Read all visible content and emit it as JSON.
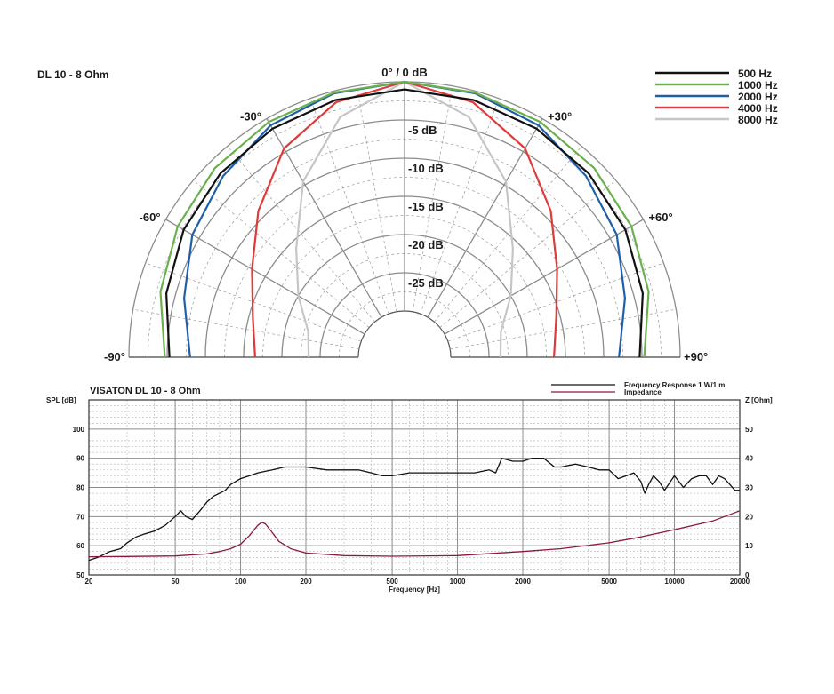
{
  "chart_data": [
    {
      "type": "polar",
      "title": "DL 10 - 8 Ohm",
      "radial_unit": "dB",
      "radial_ticks": [
        {
          "value": 0,
          "label": "0° / 0 dB"
        },
        {
          "value": -5,
          "label": "-5 dB"
        },
        {
          "value": -10,
          "label": "-10 dB"
        },
        {
          "value": -15,
          "label": "-15 dB"
        },
        {
          "value": -20,
          "label": "-20 dB"
        },
        {
          "value": -25,
          "label": "-25 dB"
        }
      ],
      "radial_range": [
        -30,
        0
      ],
      "angle_range": [
        -90,
        90
      ],
      "angle_labels": [
        {
          "angle": -90,
          "label": "-90°"
        },
        {
          "angle": -60,
          "label": "-60°"
        },
        {
          "angle": -30,
          "label": "-30°"
        },
        {
          "angle": 30,
          "label": "+30°"
        },
        {
          "angle": 60,
          "label": "+60°"
        },
        {
          "angle": 90,
          "label": "+90°"
        }
      ],
      "angles": [
        0,
        15,
        30,
        45,
        60,
        75,
        90
      ],
      "legend_position": "top-right",
      "series": [
        {
          "name": "500 Hz",
          "color": "#111111",
          "values": [
            -1,
            -1.2,
            -1.5,
            -2.0,
            -2.7,
            -3.8,
            -5.3
          ]
        },
        {
          "name": "1000 Hz",
          "color": "#6ab04c",
          "values": [
            0,
            -0.2,
            -0.5,
            -1.0,
            -1.8,
            -3.0,
            -4.7
          ]
        },
        {
          "name": "2000 Hz",
          "color": "#1f5fa8",
          "values": [
            0,
            -0.3,
            -1.0,
            -2.5,
            -4.0,
            -6.2,
            -8.0
          ]
        },
        {
          "name": "4000 Hz",
          "color": "#e03a3a",
          "values": [
            0,
            -1.5,
            -4.5,
            -9.0,
            -13.0,
            -15.5,
            -16.5
          ]
        },
        {
          "name": "8000 Hz",
          "color": "#c6c6c6",
          "values": [
            0,
            -3.5,
            -9.5,
            -16.0,
            -20.0,
            -23.0,
            -23.5
          ]
        }
      ]
    },
    {
      "type": "line",
      "title": "VISATON DL 10 - 8 Ohm",
      "xlabel": "Frequency [Hz]",
      "ylabel": "SPL [dB]",
      "y2label": "Z [Ohm]",
      "x_scale": "log",
      "xlim": [
        20,
        20000
      ],
      "ylim": [
        50,
        110
      ],
      "y2lim": [
        0,
        60
      ],
      "x_ticks": [
        20,
        50,
        100,
        200,
        500,
        1000,
        2000,
        5000,
        10000,
        20000
      ],
      "y_ticks": [
        50,
        60,
        70,
        80,
        90,
        100
      ],
      "y2_ticks": [
        0,
        10,
        20,
        30,
        40,
        50
      ],
      "legend_position": "top-right",
      "series": [
        {
          "name": "Frequency Response 1 W/1 m",
          "color": "#111111",
          "axis": "left",
          "x": [
            20,
            22,
            25,
            28,
            30,
            33,
            36,
            40,
            45,
            50,
            53,
            56,
            60,
            65,
            70,
            75,
            80,
            85,
            90,
            100,
            110,
            120,
            140,
            160,
            180,
            200,
            250,
            300,
            350,
            400,
            450,
            500,
            600,
            700,
            800,
            900,
            1000,
            1200,
            1400,
            1500,
            1600,
            1800,
            2000,
            2200,
            2500,
            2800,
            3000,
            3500,
            4000,
            4500,
            5000,
            5500,
            6000,
            6500,
            7000,
            7300,
            7600,
            8000,
            8500,
            9000,
            10000,
            11000,
            12000,
            13000,
            14000,
            15000,
            16000,
            17000,
            18000,
            19000,
            20000
          ],
          "y": [
            55,
            56,
            58,
            59,
            61,
            63,
            64,
            65,
            67,
            70,
            72,
            70,
            69,
            72,
            75,
            77,
            78,
            79,
            81,
            83,
            84,
            85,
            86,
            87,
            87,
            87,
            86,
            86,
            86,
            85,
            84,
            84,
            85,
            85,
            85,
            85,
            85,
            85,
            86,
            85,
            90,
            89,
            89,
            90,
            90,
            87,
            87,
            88,
            87,
            86,
            86,
            83,
            84,
            85,
            82,
            78,
            81,
            84,
            82,
            79,
            84,
            80,
            83,
            84,
            84,
            81,
            84,
            83,
            81,
            79,
            79
          ]
        },
        {
          "name": "Impedance",
          "color": "#8b1a3a",
          "axis": "right",
          "x": [
            20,
            30,
            50,
            70,
            80,
            90,
            100,
            110,
            120,
            125,
            130,
            140,
            150,
            170,
            200,
            300,
            500,
            1000,
            2000,
            3000,
            5000,
            7000,
            10000,
            15000,
            20000
          ],
          "y": [
            6.2,
            6.3,
            6.5,
            7.2,
            8,
            9,
            10.5,
            13.5,
            17,
            18,
            17.5,
            14.5,
            11.5,
            9,
            7.5,
            6.6,
            6.4,
            6.6,
            8,
            9,
            11,
            13,
            15.5,
            18.5,
            22
          ]
        }
      ]
    }
  ]
}
